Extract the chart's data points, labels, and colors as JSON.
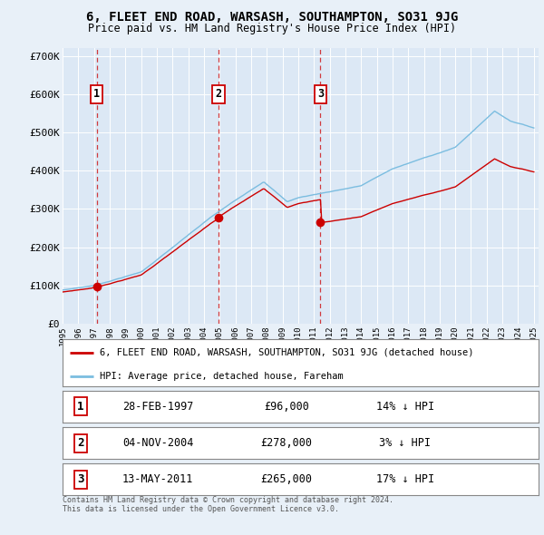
{
  "title": "6, FLEET END ROAD, WARSASH, SOUTHAMPTON, SO31 9JG",
  "subtitle": "Price paid vs. HM Land Registry's House Price Index (HPI)",
  "background_color": "#e8f0f8",
  "plot_background": "#dce8f5",
  "ylim": [
    0,
    720000
  ],
  "yticks": [
    0,
    100000,
    200000,
    300000,
    400000,
    500000,
    600000,
    700000
  ],
  "ytick_labels": [
    "£0",
    "£100K",
    "£200K",
    "£300K",
    "£400K",
    "£500K",
    "£600K",
    "£700K"
  ],
  "sale_prices": [
    96000,
    278000,
    265000
  ],
  "sale_labels": [
    "1",
    "2",
    "3"
  ],
  "hpi_color": "#7bbde0",
  "sale_color": "#cc0000",
  "legend_label_sale": "6, FLEET END ROAD, WARSASH, SOUTHAMPTON, SO31 9JG (detached house)",
  "legend_label_hpi": "HPI: Average price, detached house, Fareham",
  "table_rows": [
    [
      "1",
      "28-FEB-1997",
      "£96,000",
      "14% ↓ HPI"
    ],
    [
      "2",
      "04-NOV-2004",
      "£278,000",
      "3% ↓ HPI"
    ],
    [
      "3",
      "13-MAY-2011",
      "£265,000",
      "17% ↓ HPI"
    ]
  ],
  "footnote": "Contains HM Land Registry data © Crown copyright and database right 2024.\nThis data is licensed under the Open Government Licence v3.0.",
  "x_start_year": 1995,
  "x_end_year": 2025
}
